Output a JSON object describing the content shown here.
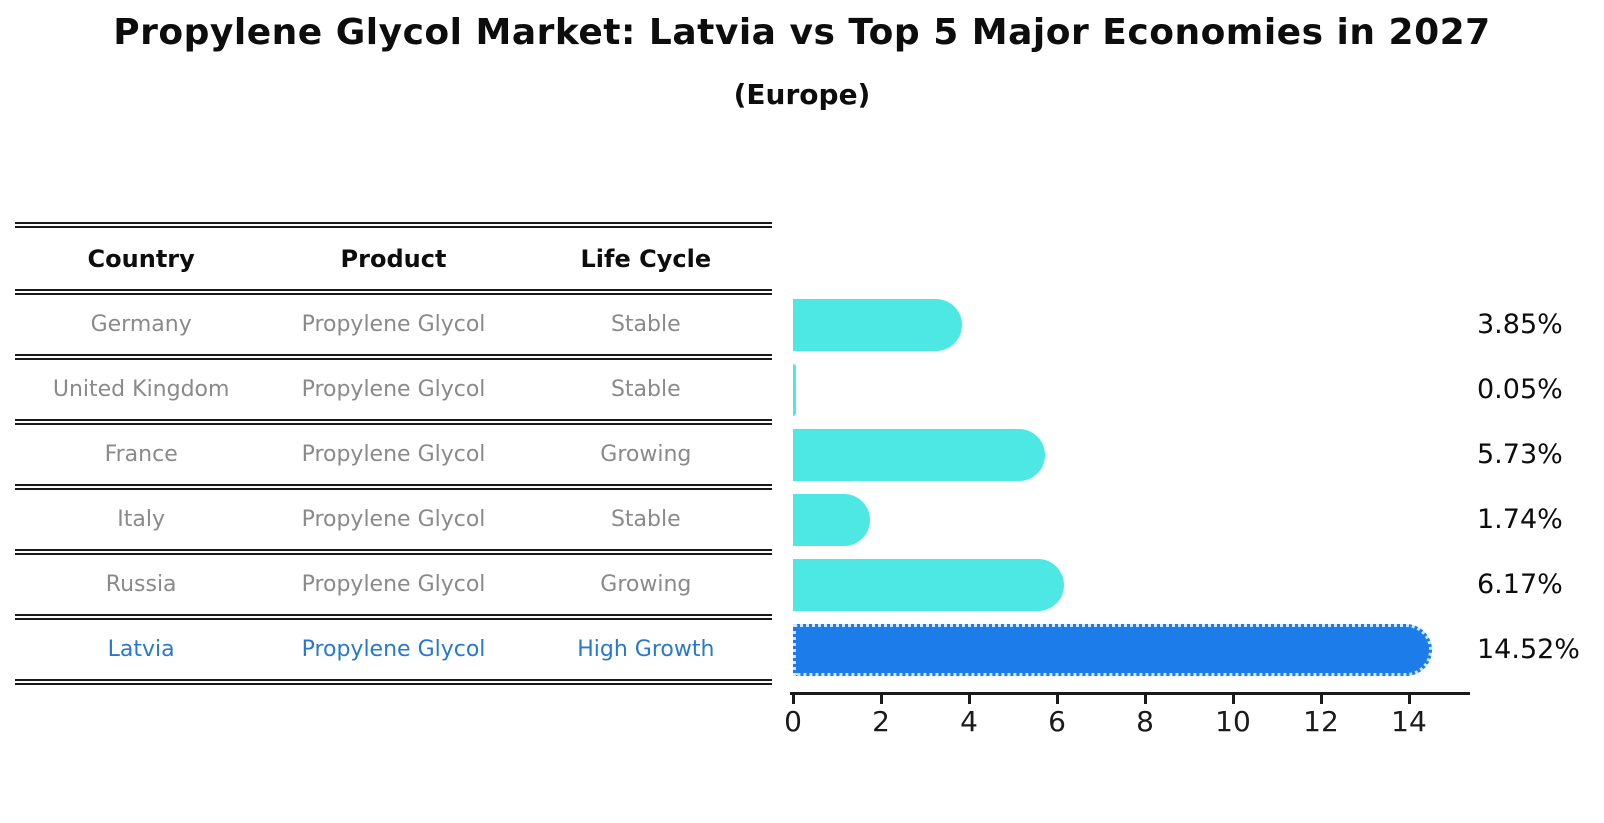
{
  "title": "Propylene Glycol Market: Latvia vs Top 5 Major Economies in 2027",
  "subtitle": "(Europe)",
  "table": {
    "columns": [
      "Country",
      "Product",
      "Life Cycle"
    ],
    "rows": [
      {
        "country": "Germany",
        "product": "Propylene Glycol",
        "life_cycle": "Stable",
        "value_label": "3.85%",
        "highlight": false
      },
      {
        "country": "United Kingdom",
        "product": "Propylene Glycol",
        "life_cycle": "Stable",
        "value_label": "0.05%",
        "highlight": false
      },
      {
        "country": "France",
        "product": "Propylene Glycol",
        "life_cycle": "Growing",
        "value_label": "5.73%",
        "highlight": false
      },
      {
        "country": "Italy",
        "product": "Propylene Glycol",
        "life_cycle": "Stable",
        "value_label": "1.74%",
        "highlight": false
      },
      {
        "country": "Russia",
        "product": "Propylene Glycol",
        "life_cycle": "Growing",
        "value_label": "6.17%",
        "highlight": false
      },
      {
        "country": "Latvia",
        "product": "Propylene Glycol",
        "life_cycle": "High Growth",
        "value_label": "14.52%",
        "highlight": true
      }
    ]
  },
  "chart_data": {
    "type": "bar",
    "orientation": "horizontal",
    "title": "Propylene Glycol Market: Latvia vs Top 5 Major Economies in 2027",
    "subtitle": "(Europe)",
    "categories": [
      "Germany",
      "United Kingdom",
      "France",
      "Italy",
      "Russia",
      "Latvia"
    ],
    "values": [
      3.85,
      0.05,
      5.73,
      1.74,
      6.17,
      14.52
    ],
    "value_labels": [
      "3.85%",
      "0.05%",
      "5.73%",
      "1.74%",
      "6.17%",
      "14.52%"
    ],
    "highlight_index": 5,
    "xlabel": "",
    "ylabel": "",
    "xlim": [
      0,
      15.4
    ],
    "xticks": [
      0,
      2,
      4,
      6,
      8,
      10,
      12,
      14
    ],
    "grid": false,
    "legend": false,
    "bar_color": "#4de8e3",
    "highlight_color": "#1c7cea",
    "highlight_border_color": "#cfe8ff",
    "highlight_text_color": "#2878ce",
    "table_text_color": "#8a8a8a",
    "axis_color": "#1a1a1a"
  }
}
